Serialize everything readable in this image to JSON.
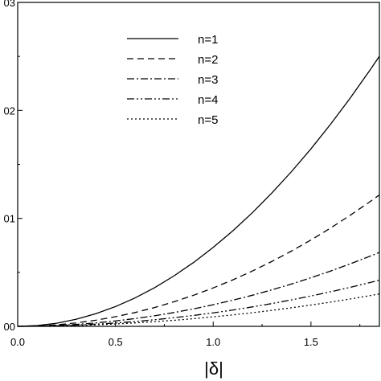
{
  "chart_data": {
    "type": "line",
    "xlabel": "|δ|",
    "ylabel": "",
    "xlim": [
      0.0,
      1.85
    ],
    "ylim": [
      0.0,
      0.03
    ],
    "x_ticks": [
      0.0,
      0.5,
      1.0,
      1.5
    ],
    "x_tick_labels": [
      "0.0",
      "0.5",
      "1.0",
      "1.5"
    ],
    "y_ticks": [
      0.0,
      0.01,
      0.02,
      0.03
    ],
    "y_tick_labels": [
      "00",
      "01",
      "02",
      "03"
    ],
    "grid": false,
    "legend_position": "top-center",
    "x": [
      0.0,
      0.1,
      0.2,
      0.3,
      0.4,
      0.5,
      0.6,
      0.7,
      0.8,
      0.9,
      1.0,
      1.1,
      1.2,
      1.3,
      1.4,
      1.5,
      1.6,
      1.7,
      1.8,
      1.85
    ],
    "series": [
      {
        "name": "n=1",
        "style": "solid",
        "values": [
          0.0,
          7e-05,
          0.00029,
          0.00066,
          0.00117,
          0.00183,
          0.00263,
          0.00358,
          0.00468,
          0.00592,
          0.00731,
          0.00884,
          0.01052,
          0.01235,
          0.01432,
          0.01644,
          0.01871,
          0.02112,
          0.02368,
          0.02501
        ]
      },
      {
        "name": "n=2",
        "style": "dashed",
        "values": [
          0.0,
          4e-05,
          0.00014,
          0.00032,
          0.00057,
          0.00089,
          0.00128,
          0.00174,
          0.00228,
          0.00288,
          0.00356,
          0.0043,
          0.00512,
          0.00601,
          0.00697,
          0.008,
          0.0091,
          0.01028,
          0.01152,
          0.01217
        ]
      },
      {
        "name": "n=3",
        "style": "dashdot",
        "values": [
          0.0,
          2e-05,
          8e-05,
          0.00018,
          0.00032,
          0.0005,
          0.00072,
          0.00098,
          0.00128,
          0.00162,
          0.002,
          0.00242,
          0.00288,
          0.00338,
          0.00392,
          0.0045,
          0.00512,
          0.00578,
          0.00648,
          0.00685
        ]
      },
      {
        "name": "n=4",
        "style": "dashdotdot",
        "values": [
          0.0,
          1e-05,
          5e-05,
          0.00011,
          0.0002,
          0.00031,
          0.00045,
          0.00061,
          0.0008,
          0.00101,
          0.00125,
          0.00151,
          0.0018,
          0.00211,
          0.00245,
          0.00281,
          0.0032,
          0.00361,
          0.00405,
          0.00428
        ]
      },
      {
        "name": "n=5",
        "style": "dotted",
        "values": [
          0.0,
          1e-05,
          3e-05,
          8e-05,
          0.00014,
          0.00022,
          0.00032,
          0.00043,
          0.00056,
          0.00071,
          0.00088,
          0.00106,
          0.00126,
          0.00148,
          0.00172,
          0.00197,
          0.00224,
          0.00253,
          0.00284,
          0.003
        ]
      }
    ]
  }
}
